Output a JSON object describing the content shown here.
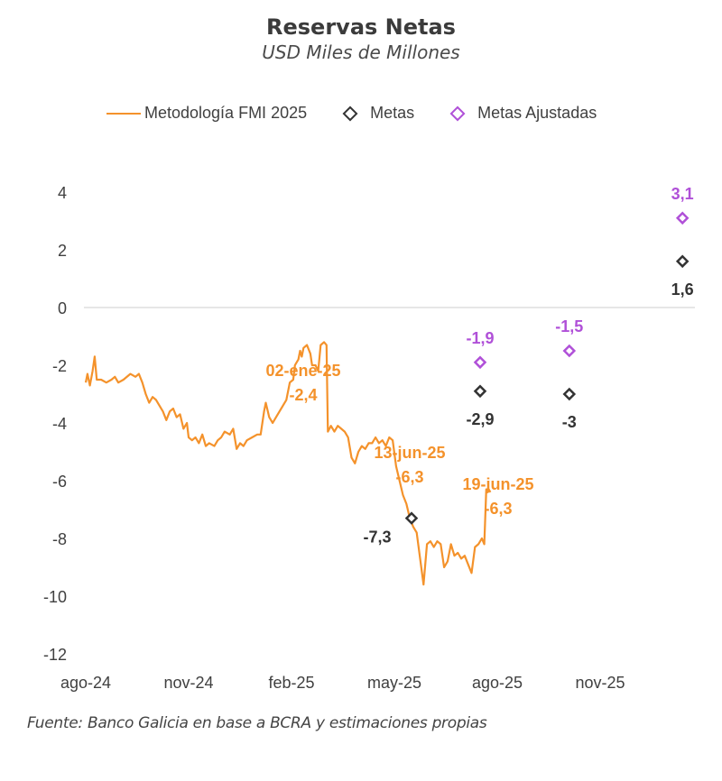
{
  "chart_data": {
    "type": "line",
    "title": "Reservas Netas",
    "subtitle": "USD Miles de Millones",
    "xlabel": "",
    "ylabel": "",
    "ylim": [
      -12,
      4
    ],
    "yticks": [
      4,
      2,
      0,
      -2,
      -4,
      -6,
      -8,
      -10,
      -12
    ],
    "ytick_labels": [
      "4",
      "2",
      "0",
      "-2",
      "-4",
      "-6",
      "-8",
      "-10",
      "-12"
    ],
    "xticks_month_offset": [
      0,
      3,
      6,
      9,
      12,
      15
    ],
    "xtick_labels": [
      "ago-24",
      "nov-24",
      "feb-25",
      "may-25",
      "ago-25",
      "nov-25"
    ],
    "x_unit": "months since ago-24",
    "grid": false,
    "zero_line": true,
    "legend": {
      "placement": "top",
      "entries": [
        {
          "label": "Metodología FMI 2025",
          "type": "line",
          "color": "#f4922b"
        },
        {
          "label": "Metas",
          "type": "diamond",
          "color": "#333333"
        },
        {
          "label": "Metas Ajustadas",
          "type": "diamond",
          "color": "#b050d8"
        }
      ]
    },
    "series": [
      {
        "name": "Metodología FMI 2025",
        "type": "line",
        "color": "#f4922b",
        "points": [
          [
            0.0,
            -2.6
          ],
          [
            0.05,
            -2.3
          ],
          [
            0.12,
            -2.7
          ],
          [
            0.2,
            -2.2
          ],
          [
            0.26,
            -1.7
          ],
          [
            0.32,
            -2.5
          ],
          [
            0.45,
            -2.5
          ],
          [
            0.6,
            -2.6
          ],
          [
            0.75,
            -2.5
          ],
          [
            0.85,
            -2.4
          ],
          [
            0.95,
            -2.6
          ],
          [
            1.1,
            -2.5
          ],
          [
            1.3,
            -2.3
          ],
          [
            1.45,
            -2.4
          ],
          [
            1.55,
            -2.3
          ],
          [
            1.65,
            -2.6
          ],
          [
            1.75,
            -3.0
          ],
          [
            1.85,
            -3.3
          ],
          [
            1.95,
            -3.1
          ],
          [
            2.05,
            -3.2
          ],
          [
            2.15,
            -3.4
          ],
          [
            2.25,
            -3.6
          ],
          [
            2.35,
            -3.9
          ],
          [
            2.45,
            -3.6
          ],
          [
            2.55,
            -3.5
          ],
          [
            2.65,
            -3.8
          ],
          [
            2.75,
            -3.7
          ],
          [
            2.85,
            -4.2
          ],
          [
            2.95,
            -4.0
          ],
          [
            3.0,
            -4.5
          ],
          [
            3.1,
            -4.6
          ],
          [
            3.2,
            -4.5
          ],
          [
            3.3,
            -4.7
          ],
          [
            3.4,
            -4.4
          ],
          [
            3.5,
            -4.8
          ],
          [
            3.6,
            -4.7
          ],
          [
            3.75,
            -4.8
          ],
          [
            3.85,
            -4.6
          ],
          [
            3.95,
            -4.5
          ],
          [
            4.05,
            -4.3
          ],
          [
            4.2,
            -4.4
          ],
          [
            4.3,
            -4.2
          ],
          [
            4.4,
            -4.9
          ],
          [
            4.5,
            -4.7
          ],
          [
            4.6,
            -4.8
          ],
          [
            4.7,
            -4.6
          ],
          [
            4.85,
            -4.5
          ],
          [
            5.0,
            -4.4
          ],
          [
            5.1,
            -4.4
          ],
          [
            5.2,
            -3.6
          ],
          [
            5.25,
            -3.3
          ],
          [
            5.35,
            -3.8
          ],
          [
            5.45,
            -4.0
          ],
          [
            5.55,
            -3.8
          ],
          [
            5.65,
            -3.6
          ],
          [
            5.75,
            -3.4
          ],
          [
            5.85,
            -3.2
          ],
          [
            5.95,
            -2.6
          ],
          [
            6.05,
            -2.5
          ],
          [
            6.1,
            -2.0
          ],
          [
            6.2,
            -1.8
          ],
          [
            6.25,
            -1.5
          ],
          [
            6.3,
            -1.7
          ],
          [
            6.35,
            -1.4
          ],
          [
            6.45,
            -1.3
          ],
          [
            6.55,
            -1.6
          ],
          [
            6.6,
            -2.0
          ],
          [
            6.7,
            -2.0
          ],
          [
            6.78,
            -2.2
          ],
          [
            6.85,
            -1.3
          ],
          [
            6.95,
            -1.2
          ],
          [
            7.02,
            -1.3
          ],
          [
            7.06,
            -4.3
          ],
          [
            7.15,
            -4.1
          ],
          [
            7.25,
            -4.3
          ],
          [
            7.35,
            -4.1
          ],
          [
            7.45,
            -4.2
          ],
          [
            7.55,
            -4.3
          ],
          [
            7.65,
            -4.5
          ],
          [
            7.75,
            -5.2
          ],
          [
            7.85,
            -5.4
          ],
          [
            7.95,
            -5.0
          ],
          [
            8.05,
            -4.8
          ],
          [
            8.15,
            -4.9
          ],
          [
            8.25,
            -4.7
          ],
          [
            8.35,
            -4.7
          ],
          [
            8.45,
            -4.5
          ],
          [
            8.55,
            -4.7
          ],
          [
            8.65,
            -4.6
          ],
          [
            8.75,
            -4.8
          ],
          [
            8.85,
            -4.5
          ],
          [
            8.95,
            -4.6
          ],
          [
            9.05,
            -5.5
          ],
          [
            9.15,
            -6.0
          ],
          [
            9.25,
            -6.5
          ],
          [
            9.35,
            -6.8
          ],
          [
            9.45,
            -7.3
          ],
          [
            9.55,
            -7.6
          ],
          [
            9.65,
            -7.8
          ],
          [
            9.75,
            -8.7
          ],
          [
            9.85,
            -9.6
          ],
          [
            9.95,
            -8.2
          ],
          [
            10.05,
            -8.1
          ],
          [
            10.15,
            -8.3
          ],
          [
            10.25,
            -8.1
          ],
          [
            10.35,
            -8.2
          ],
          [
            10.45,
            -9.0
          ],
          [
            10.55,
            -8.8
          ],
          [
            10.65,
            -8.2
          ],
          [
            10.75,
            -8.6
          ],
          [
            10.85,
            -8.5
          ],
          [
            10.95,
            -8.7
          ],
          [
            11.05,
            -8.6
          ],
          [
            11.15,
            -8.9
          ],
          [
            11.25,
            -9.2
          ],
          [
            11.35,
            -8.3
          ],
          [
            11.45,
            -8.2
          ],
          [
            11.55,
            -8.0
          ],
          [
            11.62,
            -8.2
          ],
          [
            11.68,
            -6.3
          ],
          [
            11.75,
            -6.3
          ],
          [
            11.8,
            -6.4
          ]
        ]
      },
      {
        "name": "Metas",
        "type": "scatter",
        "color": "#333333",
        "points": [
          {
            "x": 9.5,
            "y": -7.3,
            "label": "-7,3"
          },
          {
            "x": 11.5,
            "y": -2.9,
            "label": "-2,9"
          },
          {
            "x": 14.1,
            "y": -3.0,
            "label": "-3"
          },
          {
            "x": 17.4,
            "y": 1.6,
            "label": "1,6"
          }
        ]
      },
      {
        "name": "Metas Ajustadas",
        "type": "scatter",
        "color": "#b050d8",
        "points": [
          {
            "x": 11.5,
            "y": -1.9,
            "label": "-1,9"
          },
          {
            "x": 14.1,
            "y": -1.5,
            "label": "-1,5"
          },
          {
            "x": 17.4,
            "y": 3.1,
            "label": "3,1"
          }
        ]
      }
    ],
    "annotations": [
      {
        "lines": [
          "02-ene-25",
          "-2,4"
        ],
        "x": 7.4,
        "y": -2.4,
        "color": "#f4922b"
      },
      {
        "lines": [
          "13-jun-25",
          "-6,3"
        ],
        "x": 11.0,
        "y": -5.6,
        "color": "#f4922b"
      },
      {
        "lines": [
          "19-jun-25",
          "-6,3"
        ],
        "x": 13.5,
        "y": -6.6,
        "color": "#f4922b"
      }
    ]
  },
  "legend_labels": {
    "line": "Metodología FMI 2025",
    "metas": "Metas",
    "ajustadas": "Metas Ajustadas"
  },
  "source": "Fuente: Banco Galicia en base a BCRA y estimaciones propias"
}
